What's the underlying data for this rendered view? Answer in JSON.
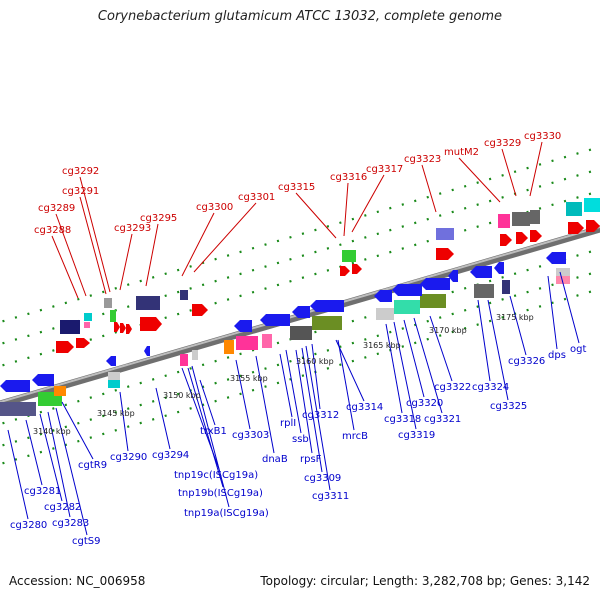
{
  "title": "Corynebacterium glutamicum ATCC 13032, complete genome",
  "accession": "Accession: NC_006958",
  "summary": "Topology: circular; Length: 3,282,708 bp; Genes: 3,142",
  "colors": {
    "top_label": "#cc0000",
    "bottom_label": "#0000cc",
    "backbone": "#8a8a8a",
    "tick": "#1a8a1a"
  },
  "kbp_ticks": [
    "3140 kbp",
    "3145 kbp",
    "3150 kbp",
    "3155 kbp",
    "3160 kbp",
    "3165 kbp",
    "3170 kbp",
    "3175 kbp"
  ],
  "top_labels": [
    "cg3288",
    "cg3289",
    "cg3291",
    "cg3292",
    "cg3293",
    "cg3295",
    "cg3300",
    "cg3301",
    "cg3315",
    "cg3316",
    "cg3317",
    "cg3323",
    "mutM2",
    "cg3329",
    "cg3330"
  ],
  "bottom_labels": [
    "cg3280",
    "cg3281",
    "cg3282",
    "cg3283",
    "cgtS9",
    "cgtR9",
    "cg3290",
    "cg3294",
    "trxB1",
    "tnp19c(ISCg19a)",
    "tnp19b(ISCg19a)",
    "tnp19a(ISCg19a)",
    "cg3303",
    "dnaB",
    "rplI",
    "ssb",
    "rpsF",
    "cg3309",
    "cg3311",
    "cg3312",
    "cg3314",
    "mrcB",
    "cg3318",
    "cg3319",
    "cg3320",
    "cg3321",
    "cg3322",
    "cg3324",
    "cg3325",
    "cg3326",
    "dps",
    "ogt"
  ]
}
